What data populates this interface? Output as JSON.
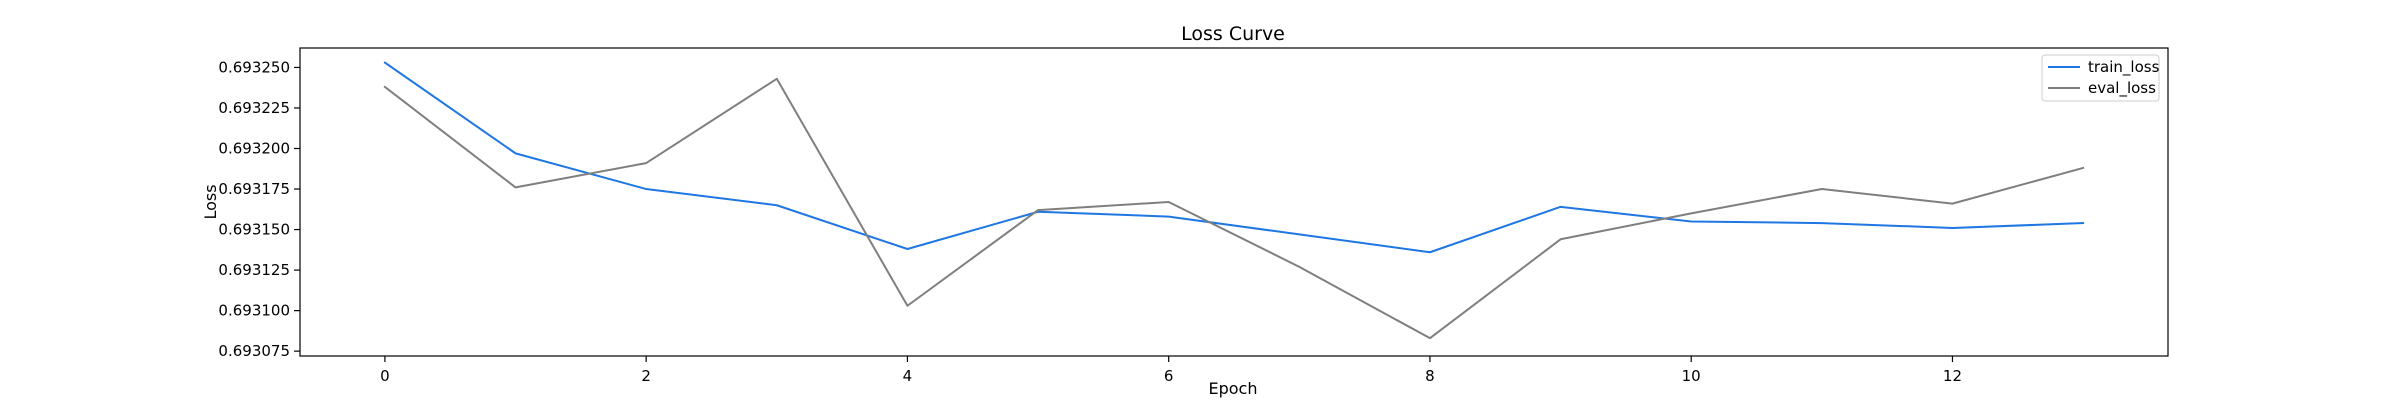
{
  "chart_data": {
    "type": "line",
    "title": "Loss Curve",
    "xlabel": "Epoch",
    "ylabel": "Loss",
    "x": [
      0,
      1,
      2,
      3,
      4,
      5,
      6,
      7,
      8,
      9,
      10,
      11,
      12,
      13
    ],
    "xlim": [
      -0.65,
      13.65
    ],
    "ylim": [
      0.693072,
      0.693262
    ],
    "xticks": [
      0,
      2,
      4,
      6,
      8,
      10,
      12
    ],
    "xtick_labels": [
      "0",
      "2",
      "4",
      "6",
      "8",
      "10",
      "12"
    ],
    "yticks": [
      0.693075,
      0.6931,
      0.693125,
      0.69315,
      0.693175,
      0.6932,
      0.693225,
      0.69325
    ],
    "ytick_labels": [
      "0.693075",
      "0.693100",
      "0.693125",
      "0.693150",
      "0.693175",
      "0.693200",
      "0.693225",
      "0.693250"
    ],
    "grid": false,
    "legend_position": "top-right",
    "series": [
      {
        "name": "train_loss",
        "color": "#1f77e4",
        "values": [
          0.693253,
          0.693197,
          0.693175,
          0.693165,
          0.693138,
          0.693161,
          0.693158,
          0.693147,
          0.693136,
          0.693164,
          0.693155,
          0.693154,
          0.693151,
          0.693154
        ]
      },
      {
        "name": "eval_loss",
        "color": "#7f7f7f",
        "values": [
          0.693238,
          0.693176,
          0.693191,
          0.693243,
          0.693103,
          0.693162,
          0.693167,
          0.693127,
          0.693083,
          0.693144,
          0.69316,
          0.693175,
          0.693166,
          0.693188
        ]
      }
    ]
  }
}
